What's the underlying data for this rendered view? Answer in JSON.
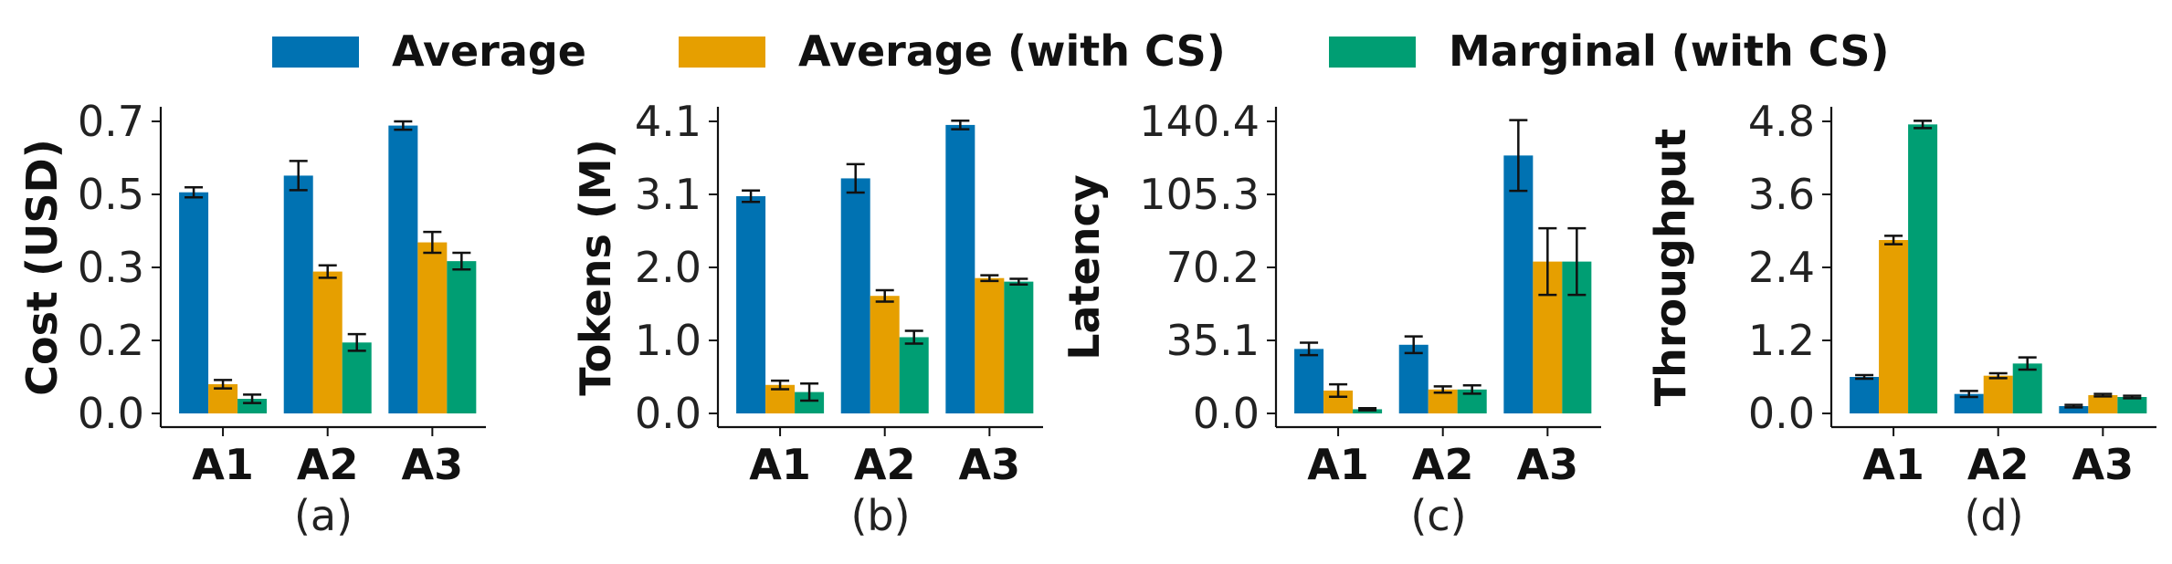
{
  "legend": [
    {
      "name": "Average",
      "color": "#0072B2"
    },
    {
      "name": "Average (with CS)",
      "color": "#E69F00"
    },
    {
      "name": "Marginal (with CS)",
      "color": "#009E73"
    }
  ],
  "chart_data": [
    {
      "type": "bar",
      "panel": "(a)",
      "ylabel": "Cost (USD)",
      "categories": [
        "A1",
        "A2",
        "A3"
      ],
      "ylim": [
        0,
        0.7
      ],
      "yticks": [
        0.0,
        0.175,
        0.35,
        0.525,
        0.7
      ],
      "ytick_labels": [
        "0.0",
        "0.2",
        "0.3",
        "0.5",
        "0.7"
      ],
      "series": [
        {
          "name": "Average",
          "values": [
            0.53,
            0.57,
            0.69
          ],
          "errors": [
            0.012,
            0.035,
            0.01
          ]
        },
        {
          "name": "Average (with CS)",
          "values": [
            0.07,
            0.34,
            0.41
          ],
          "errors": [
            0.01,
            0.015,
            0.025
          ]
        },
        {
          "name": "Marginal (with CS)",
          "values": [
            0.035,
            0.17,
            0.365
          ],
          "errors": [
            0.01,
            0.02,
            0.02
          ]
        }
      ]
    },
    {
      "type": "bar",
      "panel": "(b)",
      "ylabel": "Tokens (M)",
      "categories": [
        "A1",
        "A2",
        "A3"
      ],
      "ylim": [
        0,
        4.1
      ],
      "yticks": [
        0.0,
        1.025,
        2.05,
        3.075,
        4.1
      ],
      "ytick_labels": [
        "0.0",
        "1.0",
        "2.0",
        "3.1",
        "4.1"
      ],
      "series": [
        {
          "name": "Average",
          "values": [
            3.05,
            3.3,
            4.05
          ],
          "errors": [
            0.08,
            0.2,
            0.06
          ]
        },
        {
          "name": "Average (with CS)",
          "values": [
            0.4,
            1.65,
            1.9
          ],
          "errors": [
            0.06,
            0.08,
            0.04
          ]
        },
        {
          "name": "Marginal (with CS)",
          "values": [
            0.3,
            1.07,
            1.85
          ],
          "errors": [
            0.12,
            0.09,
            0.04
          ]
        }
      ]
    },
    {
      "type": "bar",
      "panel": "(c)",
      "ylabel": "Latency",
      "categories": [
        "A1",
        "A2",
        "A3"
      ],
      "ylim": [
        0,
        140.4
      ],
      "yticks": [
        0.0,
        35.1,
        70.2,
        105.3,
        140.4
      ],
      "ytick_labels": [
        "0.0",
        "35.1",
        "70.2",
        "105.3",
        "140.4"
      ],
      "series": [
        {
          "name": "Average",
          "values": [
            31,
            33,
            124
          ],
          "errors": [
            3,
            4,
            17
          ]
        },
        {
          "name": "Average (with CS)",
          "values": [
            11,
            11.5,
            73
          ],
          "errors": [
            3,
            1.5,
            16
          ]
        },
        {
          "name": "Marginal (with CS)",
          "values": [
            2,
            11.5,
            73
          ],
          "errors": [
            0.5,
            2,
            16
          ]
        }
      ]
    },
    {
      "type": "bar",
      "panel": "(d)",
      "ylabel": "Throughput",
      "categories": [
        "A1",
        "A2",
        "A3"
      ],
      "ylim": [
        0,
        4.8
      ],
      "yticks": [
        0.0,
        1.2,
        2.4,
        3.6,
        4.8
      ],
      "ytick_labels": [
        "0.0",
        "1.2",
        "2.4",
        "3.6",
        "4.8"
      ],
      "series": [
        {
          "name": "Average",
          "values": [
            0.6,
            0.32,
            0.12
          ],
          "errors": [
            0.03,
            0.05,
            0.02
          ]
        },
        {
          "name": "Average (with CS)",
          "values": [
            2.85,
            0.62,
            0.3
          ],
          "errors": [
            0.07,
            0.04,
            0.02
          ]
        },
        {
          "name": "Marginal (with CS)",
          "values": [
            4.75,
            0.82,
            0.27
          ],
          "errors": [
            0.06,
            0.1,
            0.02
          ]
        }
      ]
    }
  ]
}
